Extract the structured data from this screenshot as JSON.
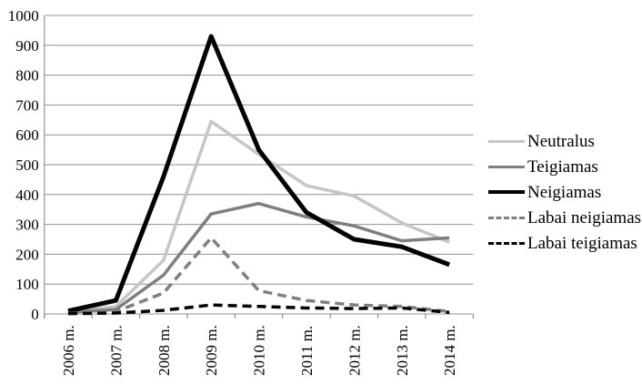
{
  "chart_data": {
    "type": "line",
    "title": "",
    "xlabel": "",
    "ylabel": "",
    "categories": [
      "2006 m.",
      "2007 m.",
      "2008 m.",
      "2009 m.",
      "2010 m.",
      "2011 m.",
      "2012 m.",
      "2013 m.",
      "2014 m."
    ],
    "ylim": [
      0,
      1000
    ],
    "ytick_step": 100,
    "ytick_labels": [
      "0",
      "100",
      "200",
      "300",
      "400",
      "500",
      "600",
      "700",
      "800",
      "900",
      "1000"
    ],
    "grid": true,
    "gridline_color": "#909090",
    "axis_color": "#808080",
    "text_color": "#000000",
    "legend_position": "right",
    "series": [
      {
        "name": "Neutralus",
        "color": "#c6c6c6",
        "style": "solid",
        "width": 3.5,
        "values": [
          5,
          25,
          180,
          645,
          535,
          430,
          395,
          305,
          240
        ]
      },
      {
        "name": "Teigiamas",
        "color": "#7f7f7f",
        "style": "solid",
        "width": 3.5,
        "values": [
          5,
          15,
          130,
          335,
          370,
          325,
          295,
          245,
          255
        ]
      },
      {
        "name": "Neigiamas",
        "color": "#000000",
        "style": "solid",
        "width": 5,
        "values": [
          10,
          45,
          460,
          930,
          550,
          340,
          250,
          225,
          165
        ]
      },
      {
        "name": "Labai neigiamas",
        "color": "#7f7f7f",
        "style": "dashed",
        "width": 3.5,
        "values": [
          2,
          8,
          70,
          255,
          78,
          45,
          30,
          25,
          8
        ]
      },
      {
        "name": "Labai teigiamas",
        "color": "#000000",
        "style": "dashed",
        "width": 3.5,
        "values": [
          1,
          3,
          12,
          30,
          25,
          20,
          18,
          20,
          5
        ]
      }
    ]
  }
}
